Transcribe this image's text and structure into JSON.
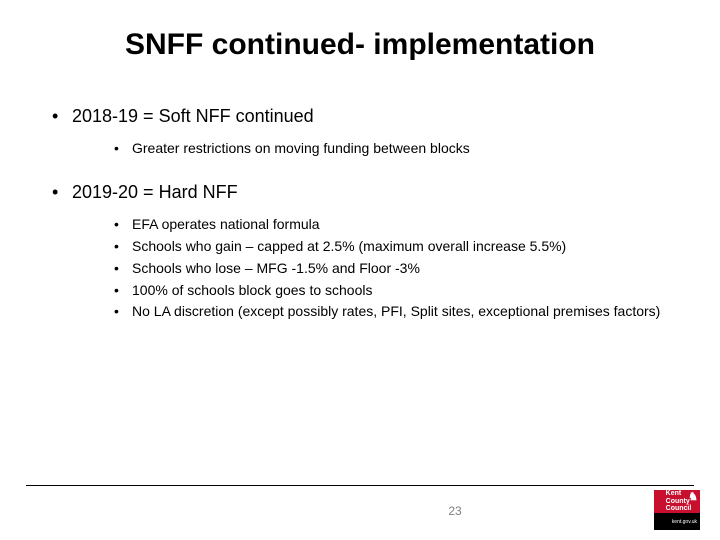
{
  "title": "SNFF continued- implementation",
  "bullets": [
    {
      "heading": "2018-19 = Soft NFF continued",
      "items": [
        "Greater restrictions on moving funding between blocks"
      ]
    },
    {
      "heading": "2019-20 = Hard NFF",
      "items": [
        "EFA operates national formula",
        "Schools who gain – capped at 2.5% (maximum overall increase 5.5%)",
        "Schools who lose – MFG -1.5% and Floor -3%",
        "100% of schools block goes to schools",
        "No LA discretion (except possibly rates, PFI, Split sites, exceptional premises factors)"
      ]
    }
  ],
  "page_number": "23",
  "logo": {
    "line1": "Kent",
    "line2": "County",
    "line3": "Council",
    "tagline": "kent.gov.uk",
    "bg_top": "#c8102e",
    "bg_bottom": "#000000"
  },
  "colors": {
    "text": "#000000",
    "page_num": "#7f7f7f",
    "background": "#ffffff"
  }
}
